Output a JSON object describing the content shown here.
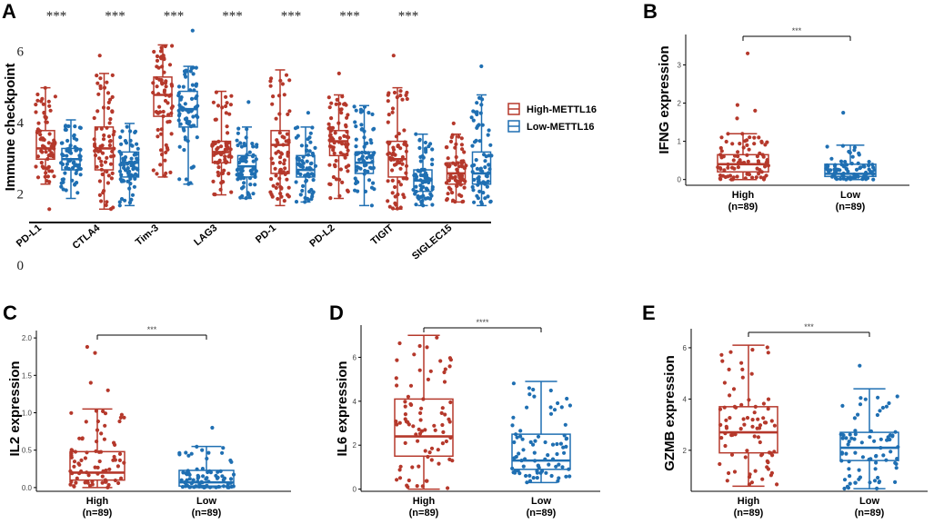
{
  "colors": {
    "high": "#b5382b",
    "low": "#1f6fb2"
  },
  "chart_data": [
    {
      "panel": "A",
      "type": "box",
      "ylabel": "Immune checkpoint",
      "yticks": [
        0,
        2,
        4,
        6
      ],
      "ylim": [
        -0.3,
        7.0
      ],
      "legend": {
        "position": "right",
        "entries": [
          {
            "name": "High-METTL16",
            "color": "#b5382b"
          },
          {
            "name": "Low-METTL16",
            "color": "#1f6fb2"
          }
        ]
      },
      "categories": [
        "PD-L1",
        "CTLA4",
        "Tim-3",
        "LAG3",
        "PD-1",
        "PD-L2",
        "TIGIT",
        "SIGLEC15"
      ],
      "significance": [
        "***",
        "***",
        "***",
        "***",
        "***",
        "***",
        "***",
        ""
      ],
      "series": [
        {
          "name": "High-METTL16",
          "boxes": [
            {
              "min": 2.3,
              "q1": 3.0,
              "median": 3.3,
              "q3": 3.8,
              "max": 5.0,
              "outliers": [
                1.6
              ]
            },
            {
              "min": 1.6,
              "q1": 2.7,
              "median": 3.3,
              "q3": 3.9,
              "max": 5.4,
              "outliers": [
                5.9
              ]
            },
            {
              "min": 2.5,
              "q1": 4.2,
              "median": 4.8,
              "q3": 5.3,
              "max": 6.2,
              "outliers": []
            },
            {
              "min": 2.0,
              "q1": 2.9,
              "median": 3.2,
              "q3": 3.5,
              "max": 4.9,
              "outliers": []
            },
            {
              "min": 1.7,
              "q1": 2.6,
              "median": 3.4,
              "q3": 3.8,
              "max": 5.5,
              "outliers": []
            },
            {
              "min": 1.9,
              "q1": 3.1,
              "median": 3.5,
              "q3": 3.8,
              "max": 4.8,
              "outliers": [
                5.4
              ]
            },
            {
              "min": 1.6,
              "q1": 2.5,
              "median": 3.0,
              "q3": 3.5,
              "max": 5.0,
              "outliers": [
                5.9
              ]
            },
            {
              "min": 1.8,
              "q1": 2.3,
              "median": 2.6,
              "q3": 2.9,
              "max": 3.7,
              "outliers": [
                4.0
              ]
            }
          ]
        },
        {
          "name": "Low-METTL16",
          "boxes": [
            {
              "min": 1.9,
              "q1": 2.7,
              "median": 3.0,
              "q3": 3.3,
              "max": 4.1,
              "outliers": []
            },
            {
              "min": 1.7,
              "q1": 2.5,
              "median": 2.9,
              "q3": 3.2,
              "max": 4.0,
              "outliers": []
            },
            {
              "min": 2.3,
              "q1": 3.9,
              "median": 4.4,
              "q3": 4.9,
              "max": 5.6,
              "outliers": [
                6.6
              ]
            },
            {
              "min": 1.9,
              "q1": 2.5,
              "median": 2.8,
              "q3": 3.1,
              "max": 3.9,
              "outliers": [
                4.6
              ]
            },
            {
              "min": 1.8,
              "q1": 2.5,
              "median": 2.7,
              "q3": 3.1,
              "max": 3.9,
              "outliers": [
                4.3
              ]
            },
            {
              "min": 1.7,
              "q1": 2.6,
              "median": 2.9,
              "q3": 3.2,
              "max": 4.5,
              "outliers": []
            },
            {
              "min": 1.7,
              "q1": 2.1,
              "median": 2.4,
              "q3": 2.7,
              "max": 3.7,
              "outliers": []
            },
            {
              "min": 1.7,
              "q1": 2.3,
              "median": 2.6,
              "q3": 3.2,
              "max": 4.8,
              "outliers": [
                5.6
              ]
            }
          ]
        }
      ]
    },
    {
      "panel": "B",
      "type": "box",
      "ylabel": "IFNG expression",
      "yticks": [
        0,
        1,
        2,
        3
      ],
      "ylim": [
        -0.15,
        3.7
      ],
      "significance": "***",
      "groups": [
        {
          "label": "High",
          "n": "(n=89)",
          "color": "#b5382b",
          "min": 0.0,
          "q1": 0.2,
          "median": 0.4,
          "q3": 0.65,
          "max": 1.2,
          "outliers": [
            1.6,
            1.8,
            1.95,
            3.3
          ]
        },
        {
          "label": "Low",
          "n": "(n=89)",
          "color": "#1f6fb2",
          "min": 0.0,
          "q1": 0.08,
          "median": 0.15,
          "q3": 0.4,
          "max": 0.9,
          "outliers": [
            1.75
          ]
        }
      ]
    },
    {
      "panel": "C",
      "type": "box",
      "ylabel": "IL2 expression",
      "yticks": [
        0.0,
        0.5,
        1.0,
        1.5,
        2.0
      ],
      "ytick_labels": [
        "0.0",
        "0.5",
        "1.0",
        "1.5",
        "2.0"
      ],
      "ylim": [
        -0.05,
        2.05
      ],
      "significance": "***",
      "groups": [
        {
          "label": "High",
          "n": "(n=89)",
          "color": "#b5382b",
          "min": 0.0,
          "q1": 0.1,
          "median": 0.2,
          "q3": 0.48,
          "max": 1.05,
          "outliers": [
            1.3,
            1.4,
            1.8,
            1.88
          ]
        },
        {
          "label": "Low",
          "n": "(n=89)",
          "color": "#1f6fb2",
          "min": 0.0,
          "q1": 0.02,
          "median": 0.07,
          "q3": 0.23,
          "max": 0.55,
          "outliers": [
            0.8
          ]
        }
      ]
    },
    {
      "panel": "D",
      "type": "box",
      "ylabel": "IL6 expression",
      "yticks": [
        0,
        2,
        4,
        6
      ],
      "ylim": [
        -0.1,
        7.3
      ],
      "significance": "****",
      "groups": [
        {
          "label": "High",
          "n": "(n=89)",
          "color": "#b5382b",
          "min": 0.0,
          "q1": 1.5,
          "median": 2.4,
          "q3": 4.1,
          "max": 7.0,
          "outliers": []
        },
        {
          "label": "Low",
          "n": "(n=89)",
          "color": "#1f6fb2",
          "min": 0.3,
          "q1": 0.9,
          "median": 1.3,
          "q3": 2.5,
          "max": 4.9,
          "outliers": []
        }
      ]
    },
    {
      "panel": "E",
      "type": "box",
      "ylabel": "GZMB expression",
      "yticks": [
        2,
        4,
        6
      ],
      "ylim": [
        0.4,
        6.6
      ],
      "significance": "***",
      "groups": [
        {
          "label": "High",
          "n": "(n=89)",
          "color": "#b5382b",
          "min": 0.6,
          "q1": 1.9,
          "median": 2.7,
          "q3": 3.7,
          "max": 6.1,
          "outliers": []
        },
        {
          "label": "Low",
          "n": "(n=89)",
          "color": "#1f6fb2",
          "min": 0.5,
          "q1": 1.6,
          "median": 2.1,
          "q3": 2.7,
          "max": 4.4,
          "outliers": [
            5.3
          ]
        }
      ]
    }
  ]
}
